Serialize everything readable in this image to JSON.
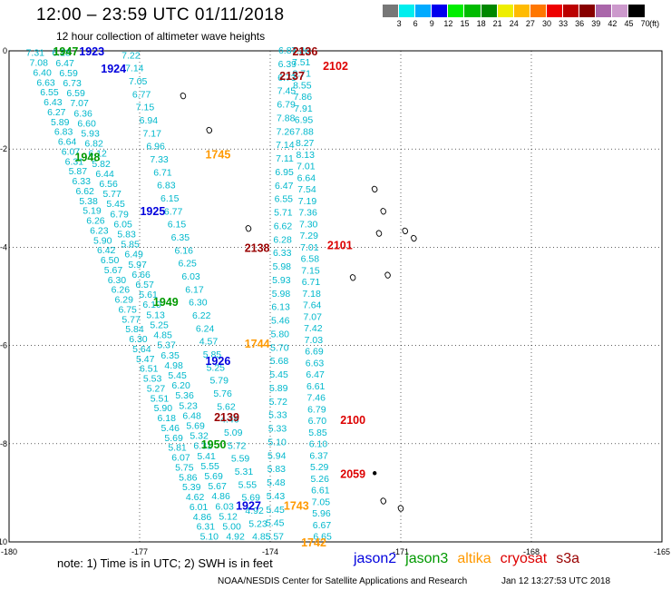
{
  "title": "12:00 – 23:59 UTC 01/11/2018",
  "subtitle": "12 hour collection of altimeter wave heights",
  "colorbar": {
    "colors": [
      "#777777",
      "#00eeee",
      "#00aaff",
      "#0000ee",
      "#00ee00",
      "#00bb00",
      "#008800",
      "#eeee00",
      "#ffbb00",
      "#ff7700",
      "#ee0000",
      "#bb0000",
      "#880000",
      "#aa66aa",
      "#cc99cc",
      "#000000"
    ],
    "labels": [
      "3",
      "6",
      "9",
      "12",
      "15",
      "18",
      "21",
      "24",
      "27",
      "30",
      "33",
      "36",
      "39",
      "42",
      "45",
      "70",
      "(ft)"
    ]
  },
  "note": "note:  1) Time is in UTC;  2) SWH is in feet",
  "legend": [
    {
      "name": "jason2",
      "color": "#0000dd"
    },
    {
      "name": "jason3",
      "color": "#009900"
    },
    {
      "name": "altika",
      "color": "#ff9900"
    },
    {
      "name": "cryosat",
      "color": "#dd0000"
    },
    {
      "name": "s3a",
      "color": "#990000"
    }
  ],
  "credit": "NOAA/NESDIS Center for Satellite Applications and Research",
  "stamp": "Jan 12 13:27:53 UTC 2018",
  "map": {
    "lon_range": [
      -180,
      -165
    ],
    "lat_range": [
      -10,
      0
    ],
    "x_ticks": [
      "-180",
      "-177",
      "-174",
      "-171",
      "-168",
      "-165"
    ],
    "y_ticks": [
      "0",
      "-2",
      "-4",
      "-6",
      "-8",
      "-10"
    ],
    "time_labels": [
      {
        "text": "1947",
        "color": "#009900",
        "lon": -178.7,
        "lat": 0.0
      },
      {
        "text": "1923",
        "color": "#0000dd",
        "lon": -178.1,
        "lat": 0.0
      },
      {
        "text": "1924",
        "color": "#0000dd",
        "lon": -177.6,
        "lat": -0.35
      },
      {
        "text": "1948",
        "color": "#009900",
        "lon": -178.2,
        "lat": -2.15
      },
      {
        "text": "1925",
        "color": "#0000dd",
        "lon": -176.7,
        "lat": -3.25
      },
      {
        "text": "1949",
        "color": "#009900",
        "lon": -176.4,
        "lat": -5.1
      },
      {
        "text": "1926",
        "color": "#0000dd",
        "lon": -175.2,
        "lat": -6.3
      },
      {
        "text": "1950",
        "color": "#009900",
        "lon": -175.3,
        "lat": -8.0
      },
      {
        "text": "1927",
        "color": "#0000dd",
        "lon": -174.5,
        "lat": -9.25
      },
      {
        "text": "1745",
        "color": "#ff9900",
        "lon": -175.2,
        "lat": -2.1
      },
      {
        "text": "1744",
        "color": "#ff9900",
        "lon": -174.3,
        "lat": -5.95
      },
      {
        "text": "1743",
        "color": "#ff9900",
        "lon": -173.4,
        "lat": -9.25
      },
      {
        "text": "1742",
        "color": "#ff9900",
        "lon": -173.0,
        "lat": -10.0
      },
      {
        "text": "2136",
        "color": "#990000",
        "lon": -173.2,
        "lat": 0.0
      },
      {
        "text": "2137",
        "color": "#990000",
        "lon": -173.5,
        "lat": -0.5
      },
      {
        "text": "2138",
        "color": "#990000",
        "lon": -174.3,
        "lat": -4.0
      },
      {
        "text": "2139",
        "color": "#990000",
        "lon": -175.0,
        "lat": -7.45
      },
      {
        "text": "2102",
        "color": "#dd0000",
        "lon": -172.5,
        "lat": -0.3
      },
      {
        "text": "2101",
        "color": "#dd0000",
        "lon": -172.4,
        "lat": -3.95
      },
      {
        "text": "2100",
        "color": "#dd0000",
        "lon": -172.1,
        "lat": -7.5
      },
      {
        "text": "2059",
        "color": "#dd0000",
        "lon": -172.1,
        "lat": -8.6
      }
    ],
    "tracks": [
      {
        "name": "jason2 pass 1923-1927",
        "start": [
          -179.4,
          -0.05
        ],
        "end": [
          -175.4,
          -9.9
        ],
        "values": [
          "7.31",
          "7.08",
          "6.40",
          "6.63",
          "6.55",
          "6.43",
          "6.27",
          "5.89",
          "6.83",
          "6.64",
          "6.07",
          "6.31",
          "5.87",
          "6.33",
          "6.62",
          "5.38",
          "5.19",
          "6.26",
          "6.23",
          "5.90",
          "6.42",
          "6.50",
          "5.67",
          "6.30",
          "6.26",
          "6.29",
          "6.75",
          "5.77",
          "5.84",
          "6.30",
          "5.64",
          "5.47",
          "6.51",
          "5.53",
          "5.27",
          "5.51",
          "5.90",
          "6.18",
          "5.46",
          "5.69",
          "5.81",
          "6.07",
          "5.75",
          "5.86",
          "5.39",
          "4.62",
          "6.01",
          "4.86",
          "6.31",
          "5.10"
        ]
      },
      {
        "name": "jason2 pass 1923-1927 b",
        "start": [
          -178.8,
          -0.05
        ],
        "end": [
          -174.8,
          -9.9
        ],
        "values": [
          "6.28",
          "6.47",
          "6.59",
          "6.73",
          "6.59",
          "7.07",
          "6.36",
          "6.60",
          "5.93",
          "6.82",
          "6.12",
          "5.82",
          "6.44",
          "6.56",
          "5.77",
          "5.45",
          "6.79",
          "6.05",
          "5.83",
          "5.85",
          "6.49",
          "5.97",
          "6.66",
          "6.57",
          "5.61",
          "6.10",
          "5.13",
          "5.25",
          "4.85",
          "5.37",
          "6.35",
          "4.98",
          "5.45",
          "6.20",
          "5.36",
          "5.23",
          "6.48",
          "5.69",
          "5.32",
          "6.31",
          "5.41",
          "5.55",
          "5.69",
          "5.67",
          "4.86",
          "6.03",
          "5.12",
          "5.00",
          "4.92"
        ]
      },
      {
        "name": "altika pass 1745-1742",
        "start": [
          -177.2,
          -0.1
        ],
        "end": [
          -174.2,
          -9.9
        ],
        "values": [
          "7.22",
          "7.14",
          "7.05",
          "6.77",
          "7.15",
          "6.94",
          "7.17",
          "6.96",
          "7.33",
          "6.71",
          "6.83",
          "6.15",
          "6.77",
          "6.15",
          "6.35",
          "6.16",
          "6.25",
          "6.03",
          "6.17",
          "6.30",
          "6.22",
          "6.24",
          "4.57",
          "5.85",
          "5.25",
          "5.79",
          "5.76",
          "5.62",
          "4.46",
          "5.09",
          "5.72",
          "5.59",
          "5.31",
          "5.55",
          "5.69",
          "4.92",
          "5.23",
          "4.85"
        ]
      },
      {
        "name": "s3a pass 2136-2139",
        "start": [
          -173.6,
          0.0
        ],
        "end": [
          -173.9,
          -9.9
        ],
        "values": [
          "6.87",
          "6.39",
          "6.73",
          "7.45",
          "6.79",
          "7.88",
          "7.26",
          "7.14",
          "7.11",
          "6.95",
          "6.47",
          "6.55",
          "5.71",
          "6.62",
          "6.28",
          "6.33",
          "5.98",
          "5.93",
          "5.98",
          "6.13",
          "5.46",
          "5.80",
          "5.70",
          "5.68",
          "5.45",
          "5.89",
          "5.72",
          "5.33",
          "5.33",
          "5.10",
          "5.94",
          "5.83",
          "5.48",
          "5.43",
          "5.45",
          "5.45",
          "5.57"
        ]
      },
      {
        "name": "cryosat pass 2102-2059",
        "start": [
          -173.3,
          0.0
        ],
        "end": [
          -172.8,
          -9.9
        ],
        "values": [
          "7.26",
          "7.51",
          "8.71",
          "8.55",
          "7.86",
          "7.91",
          "6.95",
          "7.88",
          "8.27",
          "8.13",
          "7.01",
          "6.64",
          "7.54",
          "7.19",
          "7.36",
          "7.30",
          "7.29",
          "7.01",
          "6.58",
          "7.15",
          "6.71",
          "7.18",
          "7.64",
          "7.07",
          "7.42",
          "7.03",
          "6.69",
          "6.63",
          "6.47",
          "6.61",
          "7.46",
          "6.79",
          "6.70",
          "5.85",
          "6.10",
          "6.37",
          "5.29",
          "5.26",
          "6.61",
          "7.05",
          "5.96",
          "6.67",
          "6.65"
        ]
      }
    ]
  }
}
